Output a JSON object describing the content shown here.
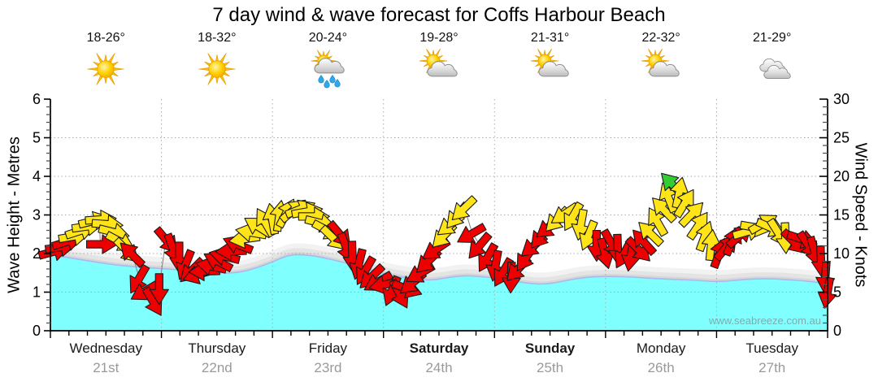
{
  "title": "7 day wind & wave forecast for Coffs Harbour Beach",
  "watermark": "www.seabreeze.com.au",
  "days": [
    {
      "name": "Wednesday",
      "date": "21st",
      "temp": "18-26°",
      "icon": "sunny",
      "bold": false
    },
    {
      "name": "Thursday",
      "date": "22nd",
      "temp": "18-32°",
      "icon": "sunny",
      "bold": false
    },
    {
      "name": "Friday",
      "date": "23rd",
      "temp": "20-24°",
      "icon": "sun-rain",
      "bold": false
    },
    {
      "name": "Saturday",
      "date": "24th",
      "temp": "19-28°",
      "icon": "sun-cloud",
      "bold": true
    },
    {
      "name": "Sunday",
      "date": "25th",
      "temp": "21-31°",
      "icon": "sun-cloud",
      "bold": true
    },
    {
      "name": "Monday",
      "date": "26th",
      "temp": "22-32°",
      "icon": "sun-cloud",
      "bold": false
    },
    {
      "name": "Tuesday",
      "date": "27th",
      "temp": "21-29°",
      "icon": "cloudy",
      "bold": false
    }
  ],
  "axes": {
    "left": {
      "label": "Wave Height - Metres",
      "ticks": [
        0,
        1,
        2,
        3,
        4,
        5,
        6
      ],
      "range": [
        0,
        6
      ]
    },
    "right": {
      "label": "Wind Speed - Knots",
      "ticks": [
        0,
        5,
        10,
        15,
        20,
        25,
        30
      ],
      "range": [
        0,
        30
      ]
    }
  },
  "colors": {
    "wave_fill": "#80FFFF",
    "wave_edge": "#AAB8F2",
    "shadow_bands": [
      "#F2F2F2",
      "#E4E4E4",
      "#D6D6D6"
    ],
    "red": "#EE0000",
    "yellow": "#FFE417",
    "green": "#33CC33",
    "arrow_outline": "#1A1A1A",
    "wind_line": "#808080",
    "grid": "#ABABAB",
    "axis": "#000000"
  },
  "chart_data": {
    "type": "area",
    "title": "7 day wind & wave forecast for Coffs Harbour Beach",
    "x_axis": {
      "span_days": 7,
      "labels": [
        "Wednesday 21st",
        "Thursday 22nd",
        "Friday 23rd",
        "Saturday 24th",
        "Sunday 25th",
        "Monday 26th",
        "Tuesday 27th"
      ]
    },
    "wave_height_m": {
      "name": "Wave Height",
      "ylabel": "Wave Height - Metres",
      "ylim": [
        0,
        6
      ],
      "points": [
        [
          0.0,
          1.97
        ],
        [
          0.15,
          1.9
        ],
        [
          0.3,
          1.83
        ],
        [
          0.45,
          1.76
        ],
        [
          0.6,
          1.7
        ],
        [
          0.8,
          1.65
        ],
        [
          1.0,
          1.61
        ],
        [
          1.2,
          1.57
        ],
        [
          1.4,
          1.52
        ],
        [
          1.55,
          1.49
        ],
        [
          1.7,
          1.51
        ],
        [
          1.85,
          1.62
        ],
        [
          2.0,
          1.78
        ],
        [
          2.15,
          1.97
        ],
        [
          2.3,
          1.97
        ],
        [
          2.45,
          1.9
        ],
        [
          2.6,
          1.8
        ],
        [
          2.75,
          1.69
        ],
        [
          2.9,
          1.56
        ],
        [
          3.05,
          1.45
        ],
        [
          3.2,
          1.37
        ],
        [
          3.4,
          1.3
        ],
        [
          3.55,
          1.36
        ],
        [
          3.7,
          1.43
        ],
        [
          3.85,
          1.41
        ],
        [
          4.0,
          1.37
        ],
        [
          4.15,
          1.3
        ],
        [
          4.3,
          1.23
        ],
        [
          4.45,
          1.2
        ],
        [
          4.6,
          1.27
        ],
        [
          4.75,
          1.36
        ],
        [
          4.9,
          1.4
        ],
        [
          5.05,
          1.41
        ],
        [
          5.25,
          1.39
        ],
        [
          5.45,
          1.35
        ],
        [
          5.65,
          1.33
        ],
        [
          5.85,
          1.3
        ],
        [
          6.0,
          1.27
        ],
        [
          6.15,
          1.3
        ],
        [
          6.3,
          1.34
        ],
        [
          6.5,
          1.35
        ],
        [
          6.7,
          1.31
        ],
        [
          6.85,
          1.28
        ],
        [
          7.0,
          1.21
        ]
      ]
    },
    "wind_speed_knots": {
      "name": "Wind Speed",
      "ylabel": "Wind Speed - Knots",
      "ylim": [
        0,
        30
      ],
      "arrow_format": [
        "day_fraction",
        "knots",
        "direction_deg_clockwise_from_east",
        "color"
      ],
      "arrows": [
        [
          0.02,
          10.2,
          -15,
          "red"
        ],
        [
          0.08,
          10.8,
          -8,
          "red"
        ],
        [
          0.14,
          11.5,
          -18,
          "red"
        ],
        [
          0.2,
          12.2,
          -10,
          "yellow"
        ],
        [
          0.26,
          12.9,
          -18,
          "yellow"
        ],
        [
          0.32,
          13.5,
          -8,
          "yellow"
        ],
        [
          0.38,
          14.2,
          -14,
          "yellow"
        ],
        [
          0.44,
          14.4,
          -4,
          "yellow"
        ],
        [
          0.45,
          11.2,
          0,
          "red"
        ],
        [
          0.5,
          13.8,
          4,
          "yellow"
        ],
        [
          0.56,
          12.8,
          14,
          "yellow"
        ],
        [
          0.62,
          11.6,
          28,
          "yellow"
        ],
        [
          0.68,
          10.5,
          45,
          "yellow"
        ],
        [
          0.74,
          9.8,
          -135,
          "red"
        ],
        [
          0.8,
          6.8,
          120,
          "red"
        ],
        [
          0.86,
          5.2,
          150,
          "red"
        ],
        [
          0.92,
          3.9,
          60,
          "red"
        ],
        [
          0.98,
          5.6,
          90,
          "red"
        ],
        [
          1.04,
          11.8,
          50,
          "red"
        ],
        [
          1.1,
          10.8,
          70,
          "red"
        ],
        [
          1.16,
          9.7,
          90,
          "red"
        ],
        [
          1.22,
          8.7,
          112,
          "red"
        ],
        [
          1.28,
          7.9,
          135,
          "red"
        ],
        [
          1.34,
          7.3,
          162,
          "red"
        ],
        [
          1.4,
          7.7,
          178,
          "red"
        ],
        [
          1.46,
          8.3,
          -168,
          "red"
        ],
        [
          1.52,
          8.9,
          -152,
          "red"
        ],
        [
          1.58,
          9.6,
          -166,
          "red"
        ],
        [
          1.64,
          10.3,
          178,
          "red"
        ],
        [
          1.7,
          11.1,
          -158,
          "red"
        ],
        [
          1.76,
          11.9,
          172,
          "yellow"
        ],
        [
          1.82,
          12.7,
          -170,
          "yellow"
        ],
        [
          1.88,
          13.4,
          -148,
          "yellow"
        ],
        [
          1.94,
          13.9,
          -120,
          "yellow"
        ],
        [
          2.0,
          14.3,
          -100,
          "yellow"
        ],
        [
          2.06,
          14.7,
          -82,
          "yellow"
        ],
        [
          2.12,
          15.1,
          -62,
          "yellow"
        ],
        [
          2.18,
          15.5,
          -40,
          "yellow"
        ],
        [
          2.24,
          15.7,
          -22,
          "yellow"
        ],
        [
          2.3,
          15.4,
          -10,
          "yellow"
        ],
        [
          2.36,
          14.8,
          0,
          "yellow"
        ],
        [
          2.42,
          14.0,
          14,
          "yellow"
        ],
        [
          2.48,
          13.1,
          28,
          "yellow"
        ],
        [
          2.54,
          12.1,
          44,
          "yellow"
        ],
        [
          2.6,
          12.6,
          50,
          "red"
        ],
        [
          2.66,
          10.9,
          70,
          "red"
        ],
        [
          2.72,
          9.8,
          88,
          "red"
        ],
        [
          2.78,
          8.8,
          104,
          "red"
        ],
        [
          2.84,
          7.9,
          120,
          "red"
        ],
        [
          2.9,
          7.1,
          136,
          "red"
        ],
        [
          2.96,
          6.4,
          150,
          "red"
        ],
        [
          3.02,
          6.0,
          168,
          "red"
        ],
        [
          3.08,
          5.3,
          112,
          "red"
        ],
        [
          3.14,
          4.9,
          62,
          "red"
        ],
        [
          3.2,
          5.5,
          20,
          "red"
        ],
        [
          3.27,
          6.3,
          140,
          "red"
        ],
        [
          3.34,
          7.5,
          150,
          "red"
        ],
        [
          3.41,
          9.1,
          136,
          "red"
        ],
        [
          3.48,
          10.6,
          146,
          "red"
        ],
        [
          3.55,
          12.4,
          134,
          "yellow"
        ],
        [
          3.61,
          13.8,
          142,
          "yellow"
        ],
        [
          3.67,
          15.0,
          130,
          "yellow"
        ],
        [
          3.73,
          15.9,
          136,
          "yellow"
        ],
        [
          3.8,
          12.6,
          150,
          "red"
        ],
        [
          3.87,
          11.1,
          130,
          "red"
        ],
        [
          3.94,
          9.6,
          120,
          "red"
        ],
        [
          4.01,
          8.6,
          100,
          "red"
        ],
        [
          4.08,
          7.7,
          120,
          "red"
        ],
        [
          4.15,
          7.1,
          92,
          "red"
        ],
        [
          4.22,
          8.1,
          134,
          "red"
        ],
        [
          4.29,
          9.6,
          124,
          "red"
        ],
        [
          4.36,
          11.1,
          140,
          "red"
        ],
        [
          4.43,
          12.4,
          130,
          "red"
        ],
        [
          4.5,
          13.5,
          142,
          "red"
        ],
        [
          4.57,
          14.5,
          134,
          "yellow"
        ],
        [
          4.64,
          15.2,
          146,
          "yellow"
        ],
        [
          4.71,
          14.9,
          120,
          "yellow"
        ],
        [
          4.78,
          13.9,
          100,
          "yellow"
        ],
        [
          4.85,
          12.5,
          112,
          "yellow"
        ],
        [
          4.92,
          11.2,
          90,
          "red"
        ],
        [
          4.99,
          10.2,
          76,
          "red"
        ],
        [
          5.05,
          11.4,
          60,
          "red"
        ],
        [
          5.11,
          10.7,
          88,
          "red"
        ],
        [
          5.17,
          10.1,
          118,
          "red"
        ],
        [
          5.23,
          9.9,
          100,
          "red"
        ],
        [
          5.29,
          10.6,
          45,
          "red"
        ],
        [
          5.35,
          11.4,
          -132,
          "red"
        ],
        [
          5.41,
          12.5,
          -136,
          "yellow"
        ],
        [
          5.47,
          14.0,
          -120,
          "yellow"
        ],
        [
          5.53,
          15.6,
          -134,
          "yellow"
        ],
        [
          5.57,
          17.1,
          -112,
          "yellow"
        ],
        [
          5.61,
          18.8,
          -134,
          "green"
        ],
        [
          5.66,
          17.7,
          -78,
          "yellow"
        ],
        [
          5.71,
          16.4,
          -58,
          "yellow"
        ],
        [
          5.77,
          15.0,
          -46,
          "yellow"
        ],
        [
          5.83,
          13.5,
          -56,
          "yellow"
        ],
        [
          5.89,
          12.1,
          -70,
          "yellow"
        ],
        [
          5.95,
          10.9,
          -84,
          "yellow"
        ],
        [
          6.02,
          9.9,
          -70,
          "red"
        ],
        [
          6.08,
          10.7,
          -50,
          "red"
        ],
        [
          6.14,
          11.5,
          -66,
          "red"
        ],
        [
          6.2,
          12.2,
          -42,
          "red"
        ],
        [
          6.27,
          12.8,
          -16,
          "yellow"
        ],
        [
          6.34,
          13.4,
          10,
          "yellow"
        ],
        [
          6.41,
          13.8,
          -30,
          "yellow"
        ],
        [
          6.48,
          13.4,
          24,
          "yellow"
        ],
        [
          6.55,
          12.8,
          58,
          "yellow"
        ],
        [
          6.62,
          12.2,
          88,
          "yellow"
        ],
        [
          6.69,
          11.6,
          45,
          "red"
        ],
        [
          6.76,
          11.9,
          18,
          "red"
        ],
        [
          6.82,
          11.2,
          56,
          "red"
        ],
        [
          6.88,
          10.4,
          74,
          "red"
        ],
        [
          6.94,
          9.2,
          88,
          "red"
        ],
        [
          6.98,
          7.1,
          94,
          "red"
        ],
        [
          7.0,
          5.1,
          100,
          "red"
        ]
      ]
    }
  }
}
